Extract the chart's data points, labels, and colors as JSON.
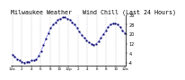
{
  "title": "Milwaukee Weather   Wind Chill (Last 24 Hours)",
  "y_values": [
    3,
    1,
    -1,
    -2,
    -3,
    -4,
    -3,
    -3,
    -2,
    -2,
    -1,
    2,
    6,
    11,
    16,
    21,
    25,
    28,
    30,
    32,
    33,
    34,
    34,
    33,
    32,
    30,
    28,
    25,
    22,
    19,
    17,
    15,
    13,
    12,
    11,
    12,
    14,
    17,
    20,
    23,
    26,
    28,
    29,
    29,
    28,
    26,
    23,
    21
  ],
  "line_color": "#0000cc",
  "marker_color": "#000066",
  "grid_color": "#888888",
  "bg_color": "#ffffff",
  "ylim": [
    -6,
    36
  ],
  "yticks": [
    -4,
    4,
    12,
    20,
    28,
    36
  ],
  "ytick_labels": [
    "-4",
    "4",
    "12",
    "20",
    "28",
    "36"
  ],
  "title_fontsize": 4.8,
  "ylabel_fontsize": 3.5,
  "xlabel_fontsize": 3.0,
  "num_xticks": 13,
  "hour_labels": [
    "12a",
    "2",
    "4",
    "6",
    "8",
    "10",
    "12p",
    "2",
    "4",
    "6",
    "8",
    "10",
    "12a"
  ]
}
